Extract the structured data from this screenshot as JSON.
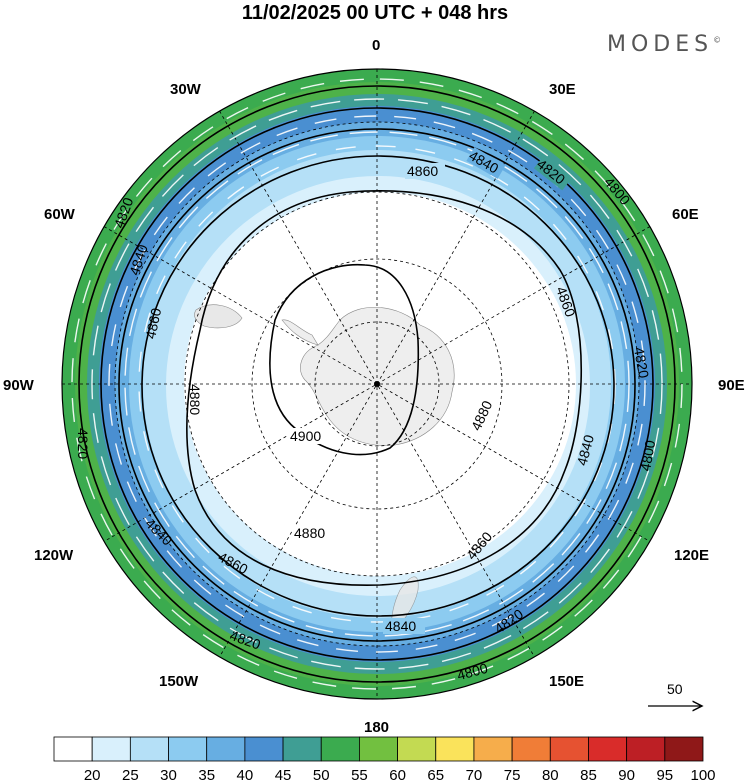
{
  "header": {
    "title": "11/02/2025  00 UTC  + 048 hrs"
  },
  "brand": {
    "name": "MODES",
    "mark": "©"
  },
  "map": {
    "projection": "south-polar-stereographic",
    "longitude_labels": {
      "top": "0",
      "top_right": "30E",
      "right_upper": "60E",
      "right": "90E",
      "right_lower": "120E",
      "bottom_right": "150E",
      "bottom": "180",
      "bottom_left": "150W",
      "left_lower": "120W",
      "left": "90W",
      "left_upper": "60W",
      "top_left": "30W"
    },
    "contour_labels": [
      "4800",
      "4820",
      "4840",
      "4860",
      "4880",
      "4900"
    ],
    "wind_reference": {
      "label": "50",
      "icon": "arrow-right-icon"
    }
  },
  "colorbar": {
    "ticks": [
      "20",
      "25",
      "30",
      "35",
      "40",
      "45",
      "50",
      "55",
      "60",
      "65",
      "70",
      "75",
      "80",
      "85",
      "90",
      "95",
      "100"
    ],
    "colors": [
      "#ffffff",
      "#d9f0fc",
      "#b5e0f7",
      "#8ccbf0",
      "#67aee2",
      "#4a8fd1",
      "#3f9e94",
      "#3bab4f",
      "#72c040",
      "#c3da52",
      "#fae35b",
      "#f6ad4b",
      "#f07d37",
      "#e65231",
      "#d92c2a",
      "#bd1f25",
      "#8f1818"
    ]
  }
}
